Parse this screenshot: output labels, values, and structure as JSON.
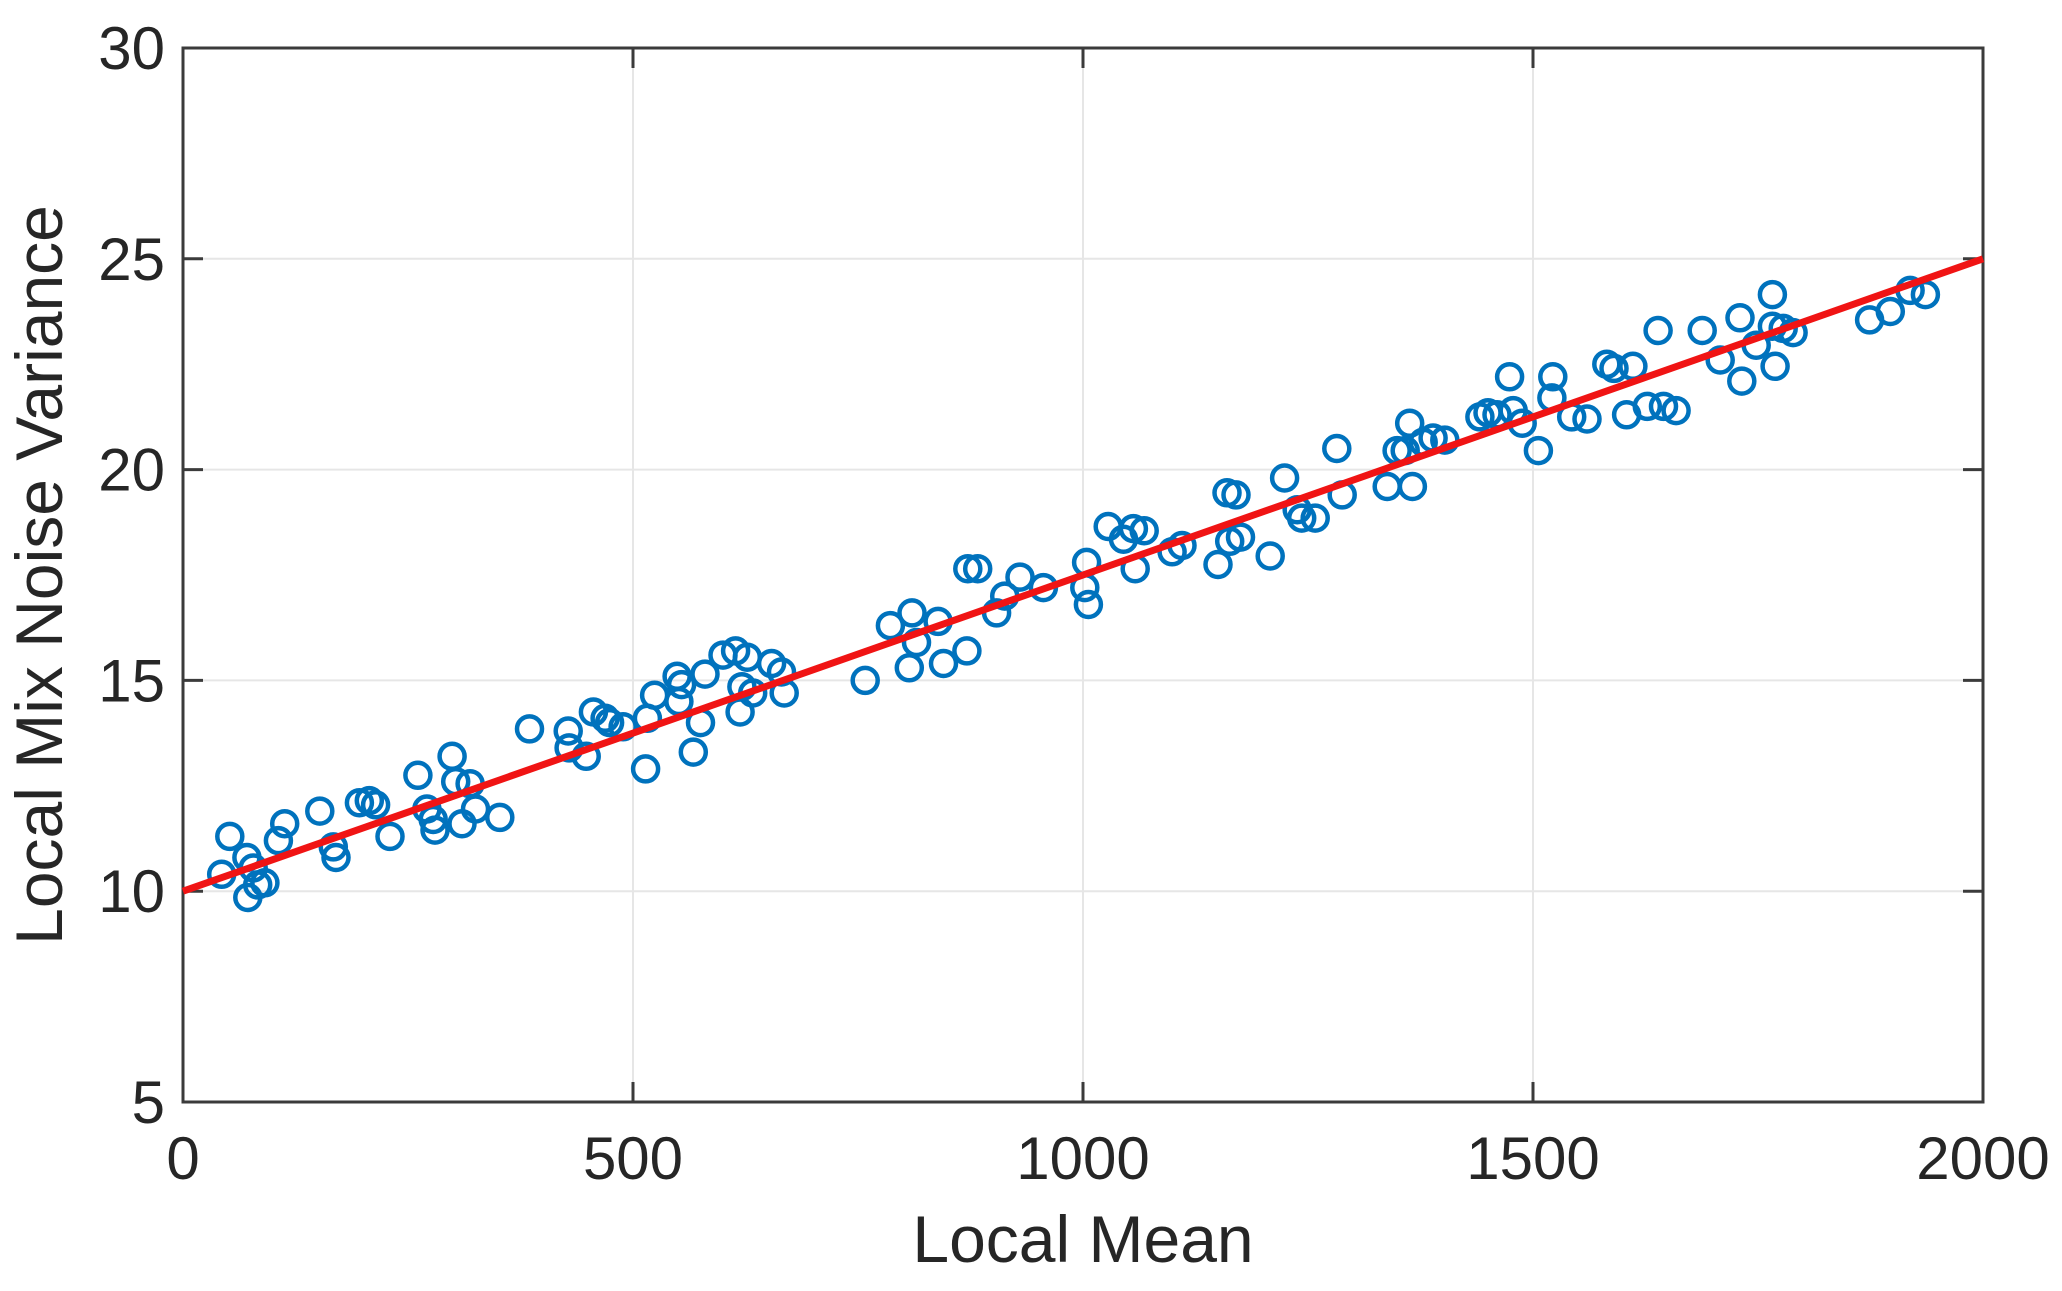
{
  "chart_data": {
    "type": "scatter",
    "title": "",
    "xlabel": "Local Mean",
    "ylabel": "Local Mix Noise Variance",
    "xlim": [
      0,
      2000
    ],
    "ylim": [
      5,
      30
    ],
    "xticks": [
      0,
      500,
      1000,
      1500,
      2000
    ],
    "yticks": [
      5,
      10,
      15,
      20,
      25,
      30
    ],
    "grid": true,
    "legend": "none",
    "marker": {
      "shape": "open-circle",
      "color": "#0072BD"
    },
    "fit_line": {
      "color": "#F01414",
      "from": [
        0,
        10
      ],
      "to": [
        2000,
        25
      ]
    },
    "points": [
      [
        43,
        10.4
      ],
      [
        52,
        11.3
      ],
      [
        71,
        10.8
      ],
      [
        78,
        10.55
      ],
      [
        72,
        9.85
      ],
      [
        83,
        10.15
      ],
      [
        91,
        10.2
      ],
      [
        106,
        11.2
      ],
      [
        113,
        11.6
      ],
      [
        152,
        11.9
      ],
      [
        167,
        11.05
      ],
      [
        170,
        10.8
      ],
      [
        196,
        12.1
      ],
      [
        207,
        12.15
      ],
      [
        214,
        12.05
      ],
      [
        230,
        11.3
      ],
      [
        261,
        12.75
      ],
      [
        271,
        11.95
      ],
      [
        278,
        11.7
      ],
      [
        280,
        11.45
      ],
      [
        299,
        13.2
      ],
      [
        303,
        12.6
      ],
      [
        319,
        12.55
      ],
      [
        325,
        11.95
      ],
      [
        310,
        11.6
      ],
      [
        352,
        11.75
      ],
      [
        385,
        13.85
      ],
      [
        428,
        13.8
      ],
      [
        429,
        13.4
      ],
      [
        448,
        13.2
      ],
      [
        456,
        14.25
      ],
      [
        469,
        14.1
      ],
      [
        474,
        14.0
      ],
      [
        489,
        13.9
      ],
      [
        514,
        12.9
      ],
      [
        516,
        14.1
      ],
      [
        524,
        14.65
      ],
      [
        549,
        15.1
      ],
      [
        554,
        14.9
      ],
      [
        551,
        14.5
      ],
      [
        567,
        13.3
      ],
      [
        575,
        14.0
      ],
      [
        580,
        15.15
      ],
      [
        600,
        15.6
      ],
      [
        614,
        15.7
      ],
      [
        627,
        15.55
      ],
      [
        621,
        14.85
      ],
      [
        633,
        14.7
      ],
      [
        619,
        14.25
      ],
      [
        654,
        15.4
      ],
      [
        665,
        15.2
      ],
      [
        668,
        14.7
      ],
      [
        758,
        15.0
      ],
      [
        786,
        16.3
      ],
      [
        810,
        16.6
      ],
      [
        807,
        15.3
      ],
      [
        815,
        15.9
      ],
      [
        839,
        16.4
      ],
      [
        845,
        15.4
      ],
      [
        871,
        15.7
      ],
      [
        872,
        17.65
      ],
      [
        883,
        17.65
      ],
      [
        904,
        16.6
      ],
      [
        913,
        17.0
      ],
      [
        930,
        17.45
      ],
      [
        956,
        17.2
      ],
      [
        1004,
        17.8
      ],
      [
        1002,
        17.2
      ],
      [
        1006,
        16.8
      ],
      [
        1028,
        18.65
      ],
      [
        1045,
        18.35
      ],
      [
        1056,
        18.6
      ],
      [
        1068,
        18.55
      ],
      [
        1058,
        17.65
      ],
      [
        1099,
        18.05
      ],
      [
        1110,
        18.2
      ],
      [
        1150,
        17.75
      ],
      [
        1160,
        19.45
      ],
      [
        1170,
        19.4
      ],
      [
        1163,
        18.3
      ],
      [
        1175,
        18.4
      ],
      [
        1208,
        17.95
      ],
      [
        1224,
        19.8
      ],
      [
        1238,
        19.05
      ],
      [
        1243,
        18.85
      ],
      [
        1258,
        18.85
      ],
      [
        1282,
        20.5
      ],
      [
        1288,
        19.4
      ],
      [
        1338,
        19.6
      ],
      [
        1366,
        19.6
      ],
      [
        1349,
        20.45
      ],
      [
        1358,
        20.45
      ],
      [
        1363,
        21.1
      ],
      [
        1378,
        20.65
      ],
      [
        1389,
        20.75
      ],
      [
        1402,
        20.7
      ],
      [
        1441,
        21.25
      ],
      [
        1450,
        21.35
      ],
      [
        1460,
        21.3
      ],
      [
        1474,
        22.2
      ],
      [
        1478,
        21.4
      ],
      [
        1488,
        21.1
      ],
      [
        1506,
        20.45
      ],
      [
        1522,
        22.2
      ],
      [
        1521,
        21.7
      ],
      [
        1543,
        21.25
      ],
      [
        1560,
        21.2
      ],
      [
        1582,
        22.5
      ],
      [
        1590,
        22.4
      ],
      [
        1611,
        22.45
      ],
      [
        1604,
        21.3
      ],
      [
        1627,
        21.5
      ],
      [
        1645,
        21.5
      ],
      [
        1659,
        21.4
      ],
      [
        1639,
        23.3
      ],
      [
        1688,
        23.3
      ],
      [
        1708,
        22.6
      ],
      [
        1730,
        23.6
      ],
      [
        1732,
        22.1
      ],
      [
        1748,
        22.95
      ],
      [
        1766,
        24.15
      ],
      [
        1766,
        23.4
      ],
      [
        1778,
        23.35
      ],
      [
        1789,
        23.25
      ],
      [
        1769,
        22.45
      ],
      [
        1874,
        23.55
      ],
      [
        1897,
        23.75
      ],
      [
        1919,
        24.25
      ],
      [
        1936,
        24.15
      ]
    ]
  },
  "colors": {
    "marker": "#0072BD",
    "fit_line": "#F01414",
    "axis_box": "#3b3b3b",
    "grid": "#e6e6e6",
    "text": "#262626",
    "background": "#ffffff"
  }
}
